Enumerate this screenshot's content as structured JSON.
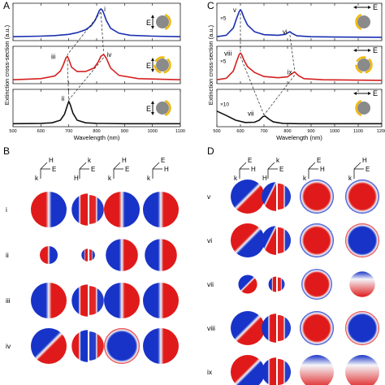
{
  "panel_labels": {
    "A": "A",
    "B": "B",
    "C": "C",
    "D": "D"
  },
  "chart_data": [
    {
      "panel": "A",
      "type": "line",
      "ylabel": "Extinction cross-section (a.u.)",
      "xlabel": "Wavelength (nm)",
      "xlim": [
        500,
        1100
      ],
      "xticks": [
        500,
        600,
        700,
        800,
        900,
        1000,
        1100
      ],
      "subplots": [
        {
          "color": "#1a2fb0",
          "peaks": [
            {
              "x": 815,
              "label": "i"
            }
          ],
          "x": [
            500,
            600,
            650,
            700,
            730,
            760,
            780,
            795,
            805,
            810,
            815,
            820,
            825,
            835,
            850,
            880,
            920,
            1000,
            1100
          ],
          "y": [
            0.05,
            0.07,
            0.09,
            0.13,
            0.19,
            0.29,
            0.42,
            0.62,
            0.84,
            0.95,
            1.0,
            0.96,
            0.86,
            0.6,
            0.34,
            0.17,
            0.1,
            0.07,
            0.05
          ]
        },
        {
          "color": "#d42020",
          "peaks": [
            {
              "x": 695,
              "label": "iii"
            },
            {
              "x": 825,
              "label": "iv"
            }
          ],
          "x": [
            500,
            600,
            650,
            670,
            680,
            690,
            695,
            700,
            710,
            730,
            760,
            790,
            805,
            815,
            825,
            835,
            850,
            880,
            950,
            1100
          ],
          "y": [
            0.05,
            0.09,
            0.18,
            0.35,
            0.55,
            0.8,
            0.85,
            0.75,
            0.48,
            0.33,
            0.33,
            0.45,
            0.65,
            0.85,
            0.92,
            0.78,
            0.45,
            0.2,
            0.09,
            0.05
          ]
        },
        {
          "color": "#111111",
          "peaks": [
            {
              "x": 700,
              "label": "ii"
            }
          ],
          "x": [
            500,
            600,
            640,
            670,
            685,
            695,
            700,
            705,
            715,
            730,
            760,
            800,
            900,
            1100
          ],
          "y": [
            0.02,
            0.03,
            0.05,
            0.14,
            0.35,
            0.65,
            0.78,
            0.68,
            0.38,
            0.14,
            0.05,
            0.03,
            0.02,
            0.02
          ]
        }
      ]
    },
    {
      "panel": "C",
      "type": "line",
      "ylabel": "Extinction cross-section (a.u.)",
      "xlabel": "Wavelength (nm)",
      "xlim": [
        500,
        1200
      ],
      "xticks": [
        500,
        600,
        700,
        800,
        900,
        1000,
        1100,
        1200
      ],
      "subplots": [
        {
          "color": "#1a2fb0",
          "scale": "×5",
          "peaks": [
            {
              "x": 600,
              "label": "v"
            },
            {
              "x": 810,
              "label": "vi"
            }
          ],
          "x": [
            500,
            540,
            570,
            585,
            595,
            600,
            605,
            615,
            630,
            660,
            700,
            760,
            790,
            800,
            810,
            820,
            840,
            900,
            1000,
            1200
          ],
          "y": [
            0.05,
            0.1,
            0.35,
            0.7,
            0.92,
            0.97,
            0.92,
            0.7,
            0.45,
            0.22,
            0.12,
            0.1,
            0.13,
            0.18,
            0.22,
            0.16,
            0.08,
            0.05,
            0.04,
            0.03
          ]
        },
        {
          "color": "#d42020",
          "scale": "×5",
          "peaks": [
            {
              "x": 600,
              "label": "viii"
            },
            {
              "x": 830,
              "label": "ix"
            }
          ],
          "x": [
            500,
            540,
            570,
            585,
            595,
            600,
            605,
            615,
            630,
            660,
            700,
            760,
            800,
            815,
            830,
            845,
            870,
            950,
            1200
          ],
          "y": [
            0.05,
            0.1,
            0.35,
            0.7,
            0.92,
            0.96,
            0.92,
            0.72,
            0.5,
            0.3,
            0.16,
            0.12,
            0.15,
            0.24,
            0.32,
            0.2,
            0.09,
            0.05,
            0.03
          ]
        },
        {
          "color": "#111111",
          "scale": "×10",
          "peaks": [
            {
              "x": 700,
              "label": "vii"
            }
          ],
          "x": [
            500,
            540,
            580,
            620,
            660,
            680,
            695,
            705,
            720,
            740,
            780,
            850,
            1000,
            1200
          ],
          "y": [
            0.45,
            0.3,
            0.14,
            0.06,
            0.07,
            0.14,
            0.26,
            0.28,
            0.18,
            0.08,
            0.03,
            0.02,
            0.02,
            0.02
          ]
        }
      ]
    }
  ],
  "panel_B": {
    "header_icons": [
      {
        "labels": [
          "H",
          "E",
          "k"
        ]
      },
      {
        "labels": [
          "k",
          "E",
          "H"
        ]
      },
      {
        "labels": [
          "H",
          "E",
          "k"
        ]
      },
      {
        "labels": [
          "E",
          "H",
          "k"
        ]
      }
    ],
    "rows": [
      "i",
      "ii",
      "iii",
      "iv"
    ]
  },
  "panel_D": {
    "header_icons": [
      {
        "labels": [
          "E",
          "H",
          "k"
        ]
      },
      {
        "labels": [
          "k",
          "E",
          "H"
        ]
      },
      {
        "labels": [
          "E",
          "H",
          "k"
        ]
      },
      {
        "labels": [
          "H",
          "E",
          "k"
        ]
      }
    ],
    "rows": [
      "v",
      "vi",
      "vii",
      "viii",
      "ix"
    ]
  },
  "field_colors": {
    "red": "#e01a1a",
    "blue": "#1833c8",
    "white": "#f4f4f8"
  }
}
